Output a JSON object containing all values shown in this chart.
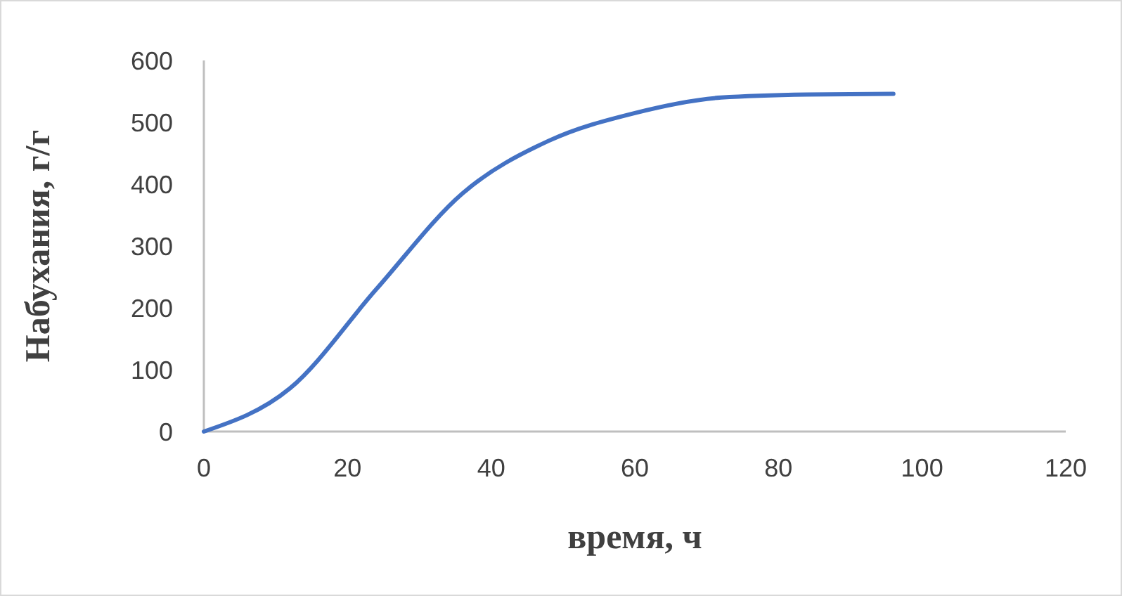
{
  "chart_data": {
    "type": "line",
    "xlabel": "время, ч",
    "ylabel": "Набухания, г/г",
    "series": [
      {
        "color": "#4472c4",
        "x": [
          0,
          12,
          24,
          36,
          48,
          60,
          72,
          84,
          96
        ],
        "values": [
          0,
          70,
          230,
          385,
          470,
          515,
          540,
          545,
          546
        ]
      }
    ],
    "xlim": [
      0,
      120
    ],
    "xticks": [
      0,
      20,
      40,
      60,
      80,
      100,
      120
    ],
    "ylim": [
      0,
      600
    ],
    "yticks": [
      0,
      100,
      200,
      300,
      400,
      500,
      600
    ],
    "grid": false,
    "marker": "none",
    "line_style": "solid"
  }
}
